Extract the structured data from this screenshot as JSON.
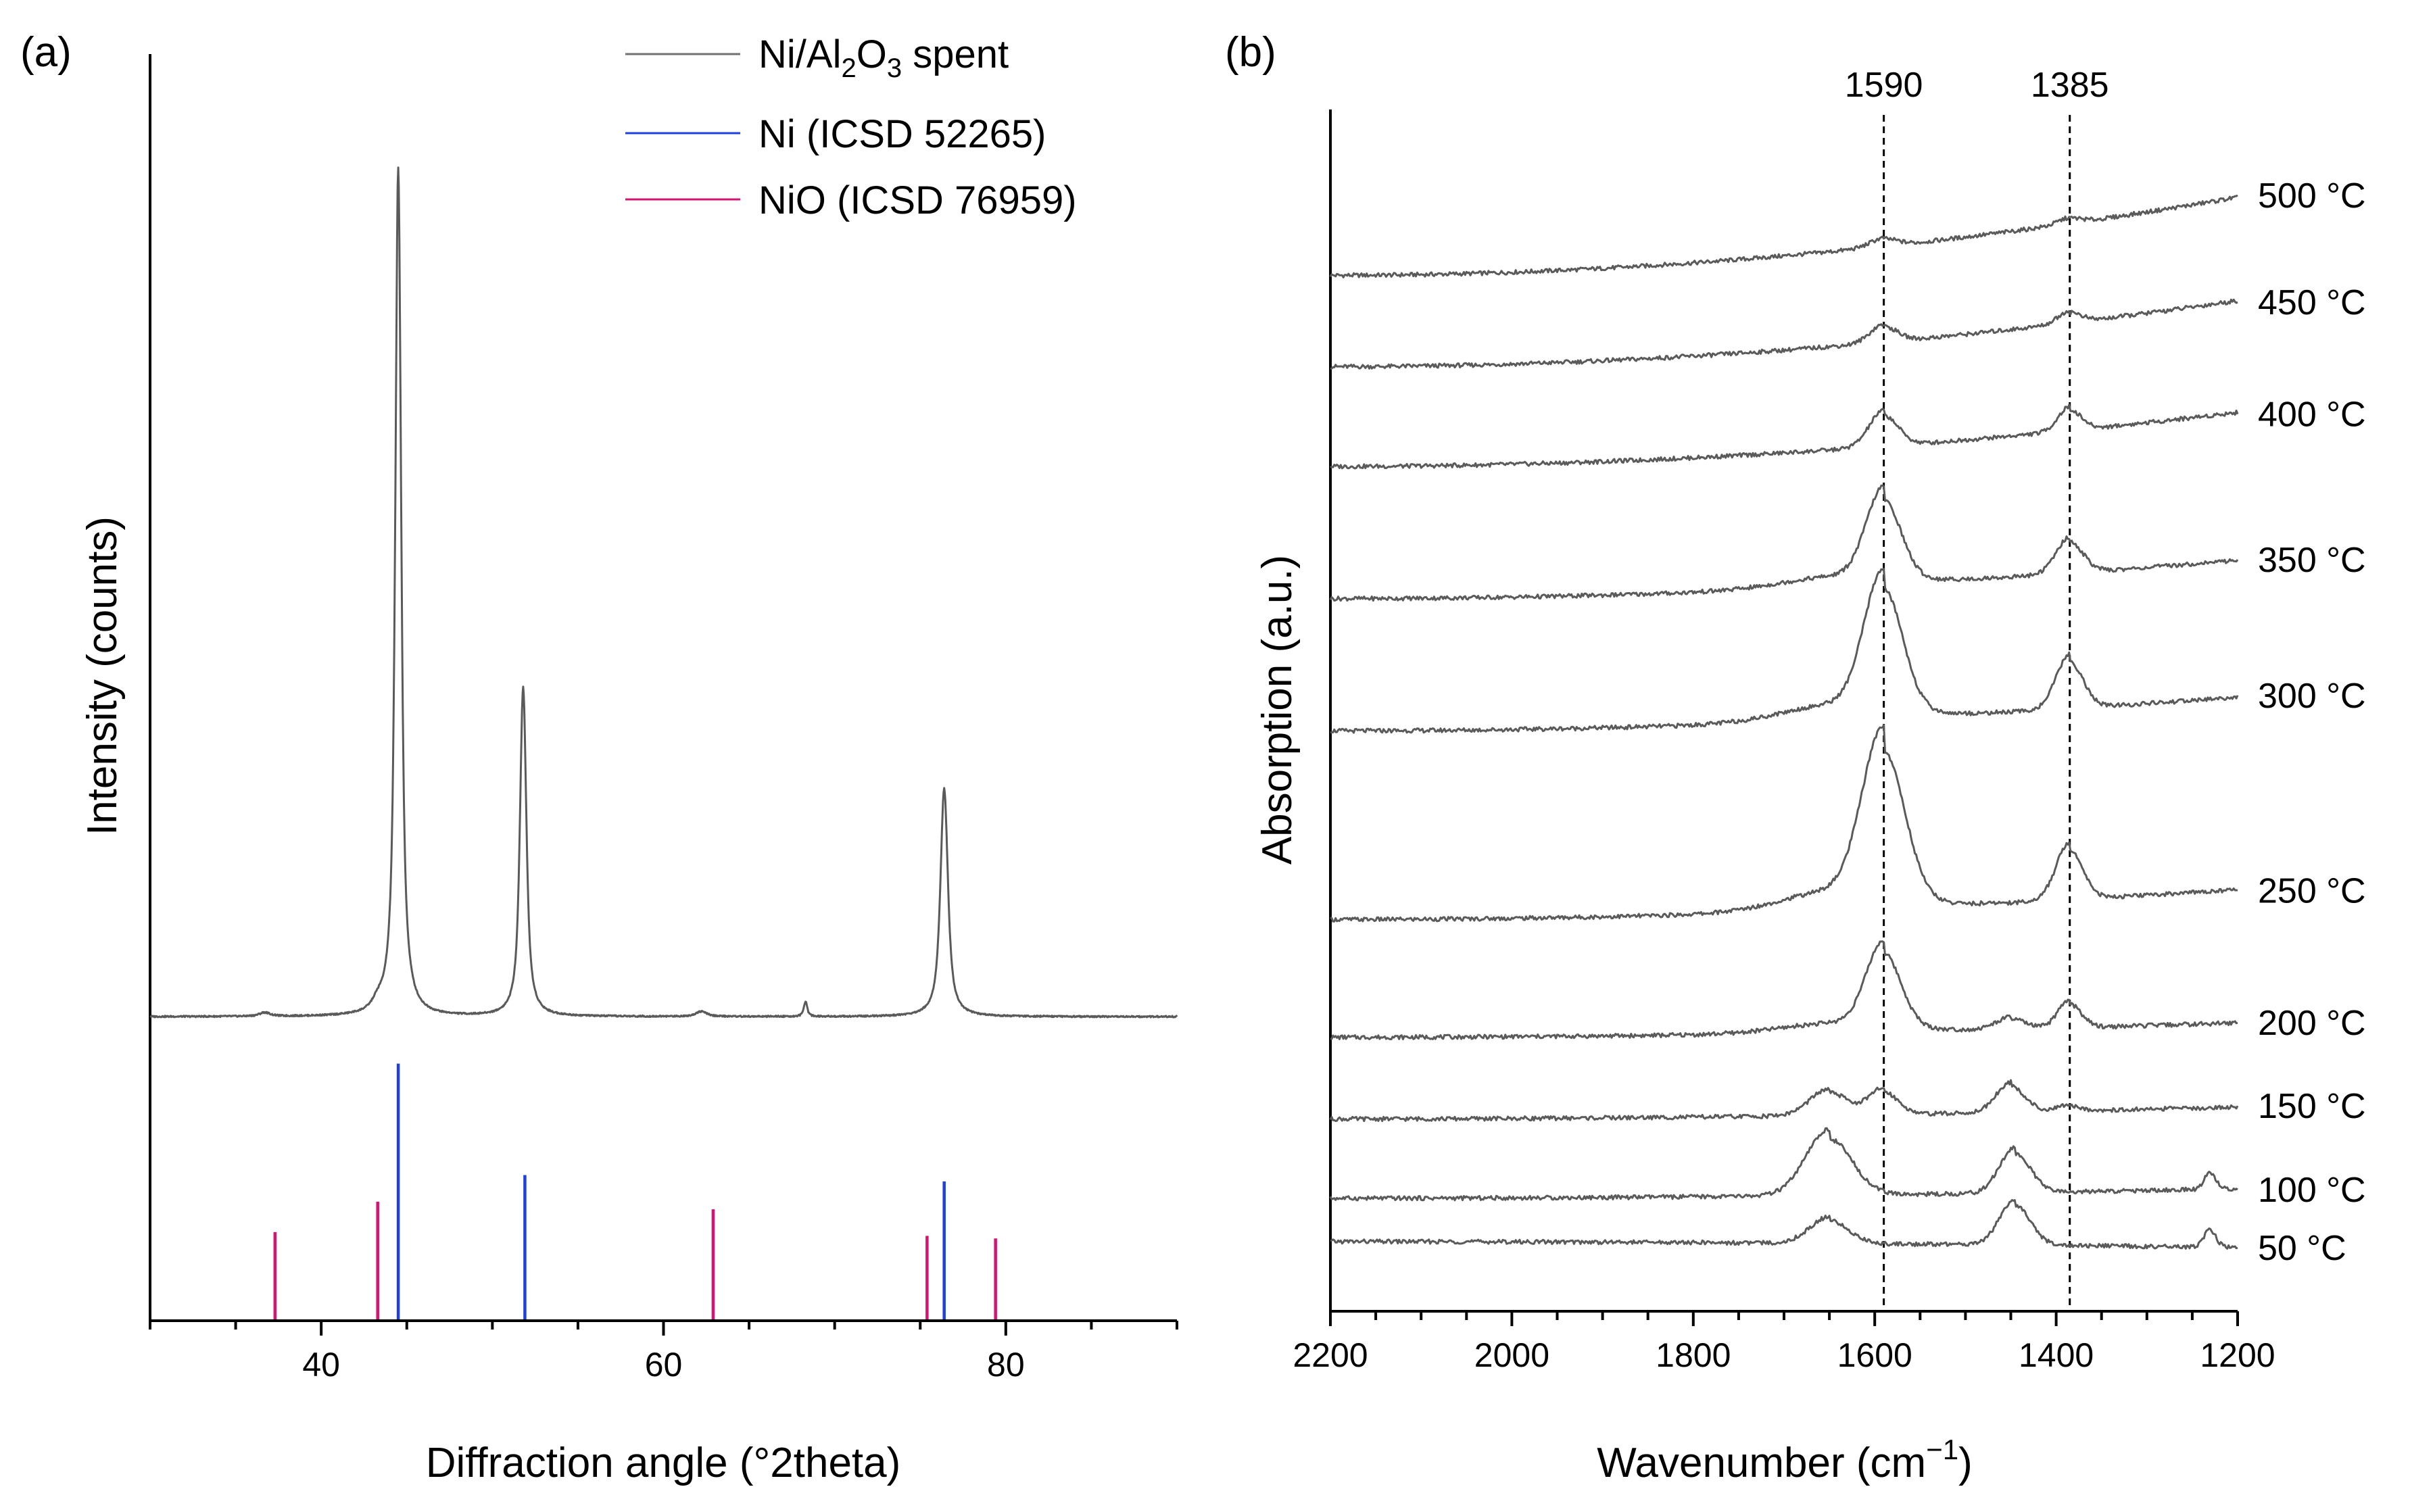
{
  "panel_a": {
    "label": "(a)",
    "xlabel": "Diffraction angle (°2theta)",
    "ylabel": "Intensity (counts)",
    "legend": [
      {
        "name_main": "Ni/Al",
        "sub1": "2",
        "mid": "O",
        "sub2": "3",
        "tail": " spent",
        "color": "#707070"
      },
      {
        "name": "Ni (ICSD 52265)",
        "color": "#1f3fe0"
      },
      {
        "name": "NiO (ICSD 76959)",
        "color": "#d6136f"
      }
    ],
    "x_ticks": [
      "40",
      "60",
      "80"
    ]
  },
  "panel_b": {
    "label": "(b)",
    "xlabel_main": "Wavenumber (cm",
    "xlabel_sup": "−1",
    "xlabel_close": ")",
    "ylabel": "Absorption (a.u.)",
    "x_ticks": [
      "2200",
      "2000",
      "1800",
      "1600",
      "1400",
      "1200"
    ],
    "peak_labels": [
      "1590",
      "1385"
    ],
    "temperatures": [
      "500 °C",
      "450 °C",
      "400 °C",
      "350 °C",
      "300 °C",
      "250 °C",
      "200 °C",
      "150 °C",
      "100 °C",
      "50 °C"
    ]
  },
  "chart_data": [
    {
      "type": "line",
      "title": "(a)",
      "xlabel": "Diffraction angle (°2theta)",
      "ylabel": "Intensity (counts)",
      "xlim": [
        30,
        90
      ],
      "ylim": [
        0,
        100
      ],
      "series": [
        {
          "name": "Ni/Al2O3 spent",
          "color": "#707070",
          "baseline": 24,
          "peaks": [
            {
              "x": 36.7,
              "height": 0.3,
              "width": 0.4
            },
            {
              "x": 43.3,
              "height": 0.6,
              "width": 0.4
            },
            {
              "x": 44.5,
              "height": 67,
              "width": 0.22
            },
            {
              "x": 51.8,
              "height": 26,
              "width": 0.24
            },
            {
              "x": 62.2,
              "height": 0.4,
              "width": 0.4
            },
            {
              "x": 68.3,
              "height": 1.2,
              "width": 0.12
            },
            {
              "x": 76.4,
              "height": 18,
              "width": 0.28
            }
          ]
        }
      ],
      "reference_patterns": [
        {
          "name": "Ni (ICSD 52265)",
          "color": "#1f3fe0",
          "sticks": [
            {
              "x": 44.5,
              "y": 20.3
            },
            {
              "x": 51.9,
              "y": 11.5
            },
            {
              "x": 76.4,
              "y": 11.0
            }
          ]
        },
        {
          "name": "NiO (ICSD 76959)",
          "color": "#d6136f",
          "sticks": [
            {
              "x": 37.3,
              "y": 7.0
            },
            {
              "x": 43.3,
              "y": 9.4
            },
            {
              "x": 62.9,
              "y": 8.8
            },
            {
              "x": 75.4,
              "y": 6.7
            },
            {
              "x": 79.4,
              "y": 6.5
            }
          ]
        }
      ]
    },
    {
      "type": "line",
      "title": "(b)",
      "xlabel": "Wavenumber (cm−1)",
      "ylabel": "Absorption (a.u.)",
      "xlim": [
        2200,
        1200
      ],
      "ylim": [
        0,
        100
      ],
      "reference_lines": [
        1590,
        1385
      ],
      "series": [
        {
          "name": "500 °C",
          "offset": 86.2,
          "slope": 6.5,
          "peaks": [
            [
              1590,
              0.7,
              14
            ],
            [
              1385,
              0.5,
              12
            ]
          ]
        },
        {
          "name": "450 °C",
          "offset": 78.6,
          "slope": 5.5,
          "peaks": [
            [
              1590,
              1.5,
              14
            ],
            [
              1385,
              1.0,
              12
            ]
          ]
        },
        {
          "name": "400 °C",
          "offset": 70.3,
          "slope": 4.5,
          "peaks": [
            [
              1590,
              3.0,
              15
            ],
            [
              1385,
              2.0,
              12
            ]
          ]
        },
        {
          "name": "350 °C",
          "offset": 59.3,
          "slope": 3.2,
          "peaks": [
            [
              1590,
              7.5,
              18
            ],
            [
              1385,
              3.0,
              14
            ]
          ]
        },
        {
          "name": "300 °C",
          "offset": 48.3,
          "slope": 2.8,
          "peaks": [
            [
              1590,
              11.5,
              20
            ],
            [
              1385,
              4.5,
              14
            ]
          ]
        },
        {
          "name": "250 °C",
          "offset": 32.6,
          "slope": 2.5,
          "peaks": [
            [
              1590,
              14.0,
              22
            ],
            [
              1385,
              4.8,
              14
            ]
          ]
        },
        {
          "name": "200 °C",
          "offset": 22.8,
          "slope": 1.2,
          "peaks": [
            [
              1590,
              7.0,
              18
            ],
            [
              1450,
              1.0,
              15
            ],
            [
              1385,
              2.3,
              12
            ]
          ]
        },
        {
          "name": "150 °C",
          "offset": 16.0,
          "slope": 1.0,
          "peaks": [
            [
              1650,
              2.2,
              20
            ],
            [
              1590,
              2.2,
              15
            ],
            [
              1450,
              2.5,
              15
            ],
            [
              1385,
              0.5,
              12
            ]
          ]
        },
        {
          "name": "100 °C",
          "offset": 9.4,
          "slope": 0.8,
          "peaks": [
            [
              1650,
              5.5,
              24
            ],
            [
              1445,
              3.8,
              16
            ],
            [
              1230,
              1.5,
              6
            ]
          ]
        },
        {
          "name": "50 °C",
          "offset": 5.8,
          "slope": -0.5,
          "peaks": [
            [
              1650,
              2.2,
              20
            ],
            [
              1445,
              3.8,
              16
            ],
            [
              1230,
              1.6,
              6
            ]
          ]
        }
      ]
    }
  ]
}
